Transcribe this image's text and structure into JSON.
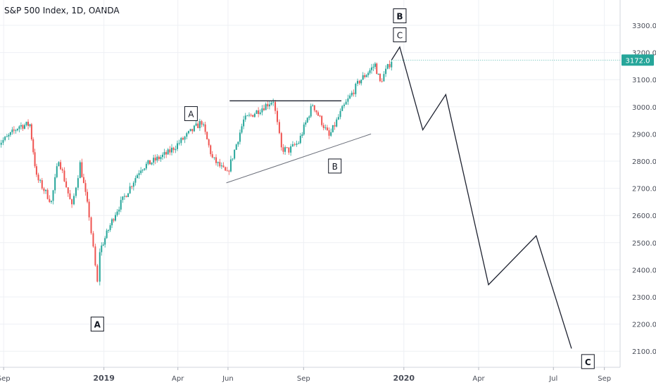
{
  "header": {
    "title": "S&P 500 Index, 1D, OANDA"
  },
  "colors": {
    "up": "#26a69a",
    "down": "#ef5350",
    "grid": "#eef0f4",
    "axis_text": "#4a4e59",
    "price_tag": "#26a69a"
  },
  "chart_data": {
    "type": "candlestick",
    "x_axis_ticks": [
      "Sep",
      "2019",
      "Apr",
      "Jun",
      "Sep",
      "2020",
      "Apr",
      "Jul",
      "Sep"
    ],
    "y_axis_ticks": [
      "3300.0",
      "3200.0",
      "3100.0",
      "3000.0",
      "2900.0",
      "2800.0",
      "2700.0",
      "2600.0",
      "2500.0",
      "2400.0",
      "2300.0",
      "2200.0",
      "2100.0"
    ],
    "ylim": [
      2040,
      3420
    ],
    "current_price": 3172.0,
    "current_price_label": "3172.0",
    "price_path": [
      [
        "2018-08-22",
        2860
      ],
      [
        "2018-09-05",
        2885
      ],
      [
        "2018-09-20",
        2930
      ],
      [
        "2018-10-03",
        2935
      ],
      [
        "2018-10-11",
        2740
      ],
      [
        "2018-10-29",
        2650
      ],
      [
        "2018-11-07",
        2810
      ],
      [
        "2018-11-23",
        2630
      ],
      [
        "2018-12-03",
        2790
      ],
      [
        "2018-12-14",
        2600
      ],
      [
        "2018-12-24",
        2350
      ],
      [
        "2018-12-27",
        2470
      ],
      [
        "2019-01-15",
        2610
      ],
      [
        "2019-02-15",
        2775
      ],
      [
        "2019-03-20",
        2830
      ],
      [
        "2019-04-30",
        2945
      ],
      [
        "2019-05-13",
        2810
      ],
      [
        "2019-05-31",
        2752
      ],
      [
        "2019-06-20",
        2950
      ],
      [
        "2019-07-26",
        3025
      ],
      [
        "2019-08-05",
        2845
      ],
      [
        "2019-08-14",
        2840
      ],
      [
        "2019-08-26",
        2870
      ],
      [
        "2019-09-12",
        3010
      ],
      [
        "2019-10-02",
        2890
      ],
      [
        "2019-10-18",
        2990
      ],
      [
        "2019-11-08",
        3095
      ],
      [
        "2019-11-27",
        3155
      ],
      [
        "2019-12-03",
        3090
      ],
      [
        "2019-12-17",
        3172
      ]
    ],
    "projection": [
      [
        "2019-12-27",
        3220
      ],
      [
        "2020-01-24",
        2915
      ],
      [
        "2020-02-21",
        3045
      ],
      [
        "2020-04-13",
        2345
      ],
      [
        "2020-06-10",
        2525
      ],
      [
        "2020-07-23",
        2110
      ]
    ],
    "resistance_line": {
      "from": [
        "2019-06-03",
        3022
      ],
      "to": [
        "2019-10-17",
        3022
      ]
    },
    "support_line": {
      "from": [
        "2019-05-30",
        2720
      ],
      "to": [
        "2019-11-22",
        2900
      ]
    },
    "wave_labels": [
      {
        "text": "A",
        "date": "2018-12-24",
        "price": 2200,
        "bold": true
      },
      {
        "text": "A",
        "date": "2019-04-17",
        "price": 2975,
        "bold": false
      },
      {
        "text": "B",
        "date": "2019-10-09",
        "price": 2782,
        "bold": false
      },
      {
        "text": "C",
        "date": "2019-12-27",
        "price": 3265,
        "bold": false
      },
      {
        "text": "B",
        "date": "2019-12-27",
        "price": 3335,
        "bold": true
      },
      {
        "text": "C",
        "date": "2020-08-12",
        "price": 2062,
        "bold": true
      }
    ]
  }
}
